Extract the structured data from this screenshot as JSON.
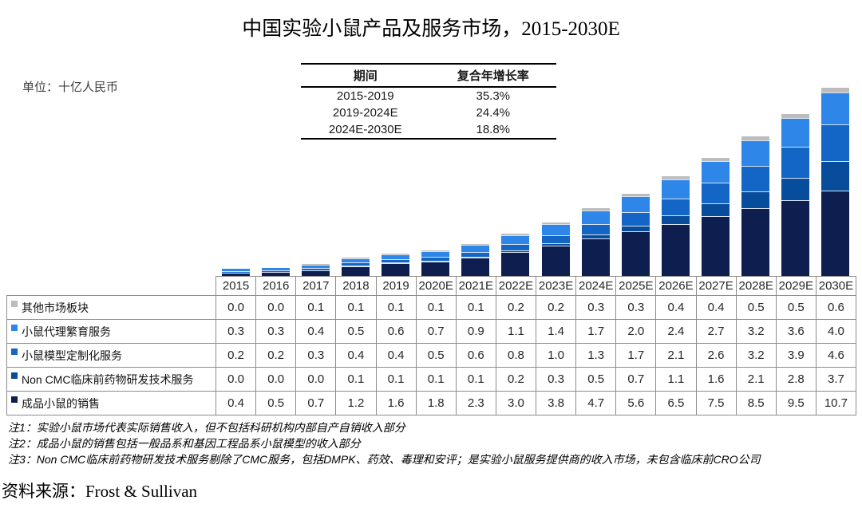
{
  "title": "中国实验小鼠产品及服务市场，2015-2030E",
  "unit_label": "单位：十亿人民币",
  "cagr_table": {
    "headers": [
      "期间",
      "复合年增长率"
    ],
    "rows": [
      {
        "period": "2015-2019",
        "cagr": "35.3%"
      },
      {
        "period": "2019-2024E",
        "cagr": "24.4%"
      },
      {
        "period": "2024E-2030E",
        "cagr": "18.8%"
      }
    ]
  },
  "chart_data": {
    "type": "bar",
    "stacked": true,
    "title": "中国实验小鼠产品及服务市场，2015-2030E",
    "xlabel": "",
    "ylabel": "十亿人民币",
    "ylim": [
      0,
      24
    ],
    "grid": false,
    "legend_position": "table-rows-left",
    "categories": [
      "2015",
      "2016",
      "2017",
      "2018",
      "2019",
      "2020E",
      "2021E",
      "2022E",
      "2023E",
      "2024E",
      "2025E",
      "2026E",
      "2027E",
      "2028E",
      "2029E",
      "2030E"
    ],
    "series": [
      {
        "name": "其他市场板块",
        "color": "#BDBDBD",
        "values": [
          0.0,
          0.0,
          0.1,
          0.1,
          0.1,
          0.1,
          0.1,
          0.2,
          0.2,
          0.3,
          0.3,
          0.4,
          0.4,
          0.5,
          0.5,
          0.6
        ]
      },
      {
        "name": "小鼠代理繁育服务",
        "color": "#2E86E8",
        "values": [
          0.3,
          0.3,
          0.4,
          0.5,
          0.6,
          0.7,
          0.9,
          1.1,
          1.4,
          1.7,
          2.0,
          2.4,
          2.7,
          3.2,
          3.6,
          4.0
        ]
      },
      {
        "name": "小鼠模型定制化服务",
        "color": "#1365C6",
        "values": [
          0.2,
          0.2,
          0.3,
          0.4,
          0.4,
          0.5,
          0.6,
          0.8,
          1.0,
          1.3,
          1.7,
          2.1,
          2.6,
          3.2,
          3.9,
          4.6
        ]
      },
      {
        "name": "Non CMC临床前药物研发技术服务",
        "color": "#084C9C",
        "values": [
          0.0,
          0.0,
          0.0,
          0.1,
          0.1,
          0.1,
          0.1,
          0.2,
          0.3,
          0.5,
          0.7,
          1.1,
          1.6,
          2.1,
          2.8,
          3.7
        ]
      },
      {
        "name": "成品小鼠的销售",
        "color": "#0E1E4E",
        "values": [
          0.4,
          0.5,
          0.7,
          1.2,
          1.6,
          1.8,
          2.3,
          3.0,
          3.8,
          4.7,
          5.6,
          6.5,
          7.5,
          8.5,
          9.5,
          10.7
        ]
      }
    ],
    "stack_order_bottom_to_top": [
      "成品小鼠的销售",
      "Non CMC临床前药物研发技术服务",
      "小鼠模型定制化服务",
      "小鼠代理繁育服务",
      "其他市场板块"
    ]
  },
  "notes": [
    "注1：实验小鼠市场代表实际销售收入，但不包括科研机构内部自产自销收入部分",
    "注2：成品小鼠的销售包括一般品系和基因工程品系小鼠模型的收入部分",
    "注3：Non CMC临床前药物研发技术服务剔除了CMC服务，包括DMPK、药效、毒理和安评；是实验小鼠服务提供商的收入市场，未包含临床前CRO公司"
  ],
  "source": "资料来源：Frost & Sullivan"
}
